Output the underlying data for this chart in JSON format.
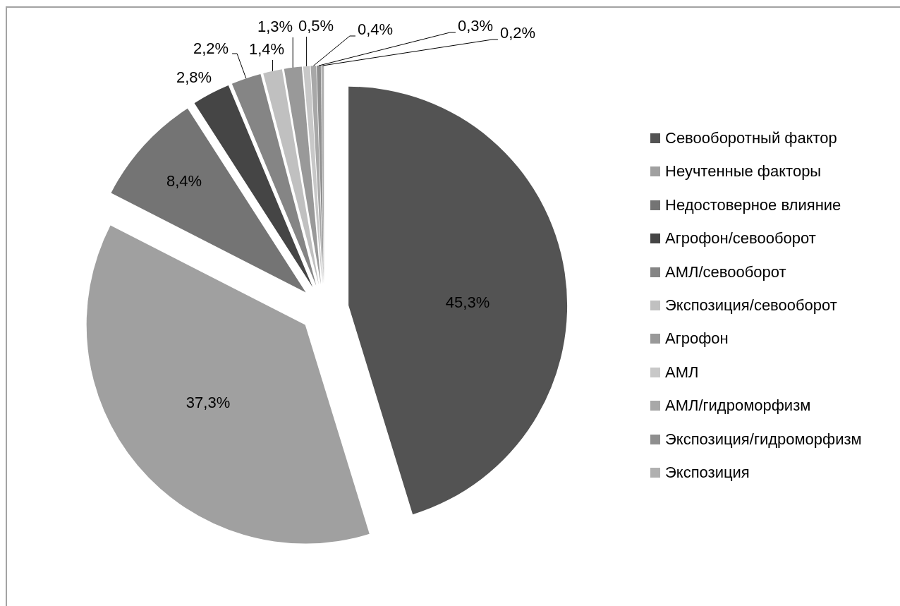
{
  "chart_data": {
    "type": "pie",
    "categories": [
      "Севооборотный фактор",
      "Неучтенные факторы",
      "Недостоверное влияние",
      "Агрофон/севооборот",
      "АМЛ/севооборот",
      "Экспозиция/севооборот",
      "Агрофон",
      "АМЛ",
      "АМЛ/гидроморфизм",
      "Экспозиция/гидроморфизм",
      "Экспозиция"
    ],
    "values": [
      45.3,
      37.3,
      8.4,
      2.8,
      2.2,
      1.4,
      1.3,
      0.5,
      0.4,
      0.3,
      0.2
    ],
    "colors": [
      "#535353",
      "#a0a0a0",
      "#747474",
      "#454545",
      "#858585",
      "#c0c0c0",
      "#999999",
      "#c8c8c8",
      "#a8a8a8",
      "#8f8f8f",
      "#b0b0b0"
    ],
    "value_labels": [
      "45,3%",
      "37,3%",
      "8,4%",
      "2,8%",
      "2,2%",
      "1,4%",
      "1,3%",
      "0,5%",
      "0,4%",
      "0,3%",
      "0,2%"
    ],
    "legend": "right"
  }
}
